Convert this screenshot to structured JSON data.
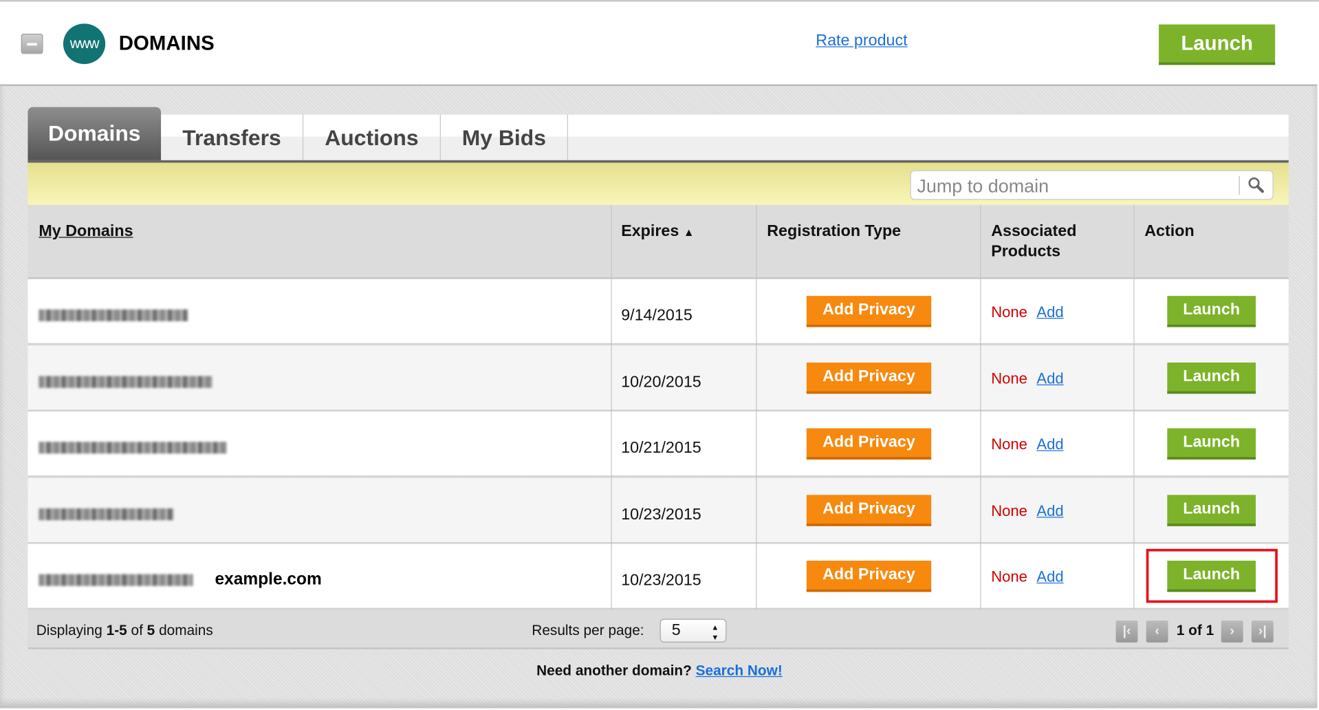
{
  "header": {
    "title": "DOMAINS",
    "logo_text": "www",
    "rate_link": "Rate product",
    "launch_label": "Launch"
  },
  "tabs": [
    {
      "label": "Domains",
      "active": true
    },
    {
      "label": "Transfers"
    },
    {
      "label": "Auctions"
    },
    {
      "label": "My Bids"
    }
  ],
  "search": {
    "placeholder": "Jump to domain",
    "icon": "magnifier-icon"
  },
  "table": {
    "columns": [
      "My Domains",
      "Expires",
      "Registration Type",
      "Associated Products",
      "Action"
    ],
    "sort_indicator": "▲",
    "rows": [
      {
        "expires": "9/14/2015",
        "registration": "Add Privacy",
        "products": "None",
        "add": "Add",
        "action": "Launch"
      },
      {
        "expires": "10/20/2015",
        "registration": "Add Privacy",
        "products": "None",
        "add": "Add",
        "action": "Launch"
      },
      {
        "expires": "10/21/2015",
        "registration": "Add Privacy",
        "products": "None",
        "add": "Add",
        "action": "Launch"
      },
      {
        "expires": "10/23/2015",
        "registration": "Add Privacy",
        "products": "None",
        "add": "Add",
        "action": "Launch"
      },
      {
        "expires": "10/23/2015",
        "registration": "Add Privacy",
        "products": "None",
        "add": "Add",
        "action": "Launch",
        "annotation": "example.com"
      }
    ]
  },
  "footer": {
    "displaying_prefix": "Displaying ",
    "range": "1-5",
    "of": " of ",
    "total": "5",
    "suffix": " domains",
    "results_label": "Results per page:",
    "results_value": "5",
    "page_info": "1 of 1"
  },
  "bottom": {
    "text": "Need another domain? ",
    "link": "Search Now!"
  },
  "colors": {
    "green": "#7cb32a",
    "orange": "#f7890f",
    "teal": "#127373",
    "link": "#1a6fd8",
    "red": "#d00000",
    "highlight": "#e8101a"
  }
}
